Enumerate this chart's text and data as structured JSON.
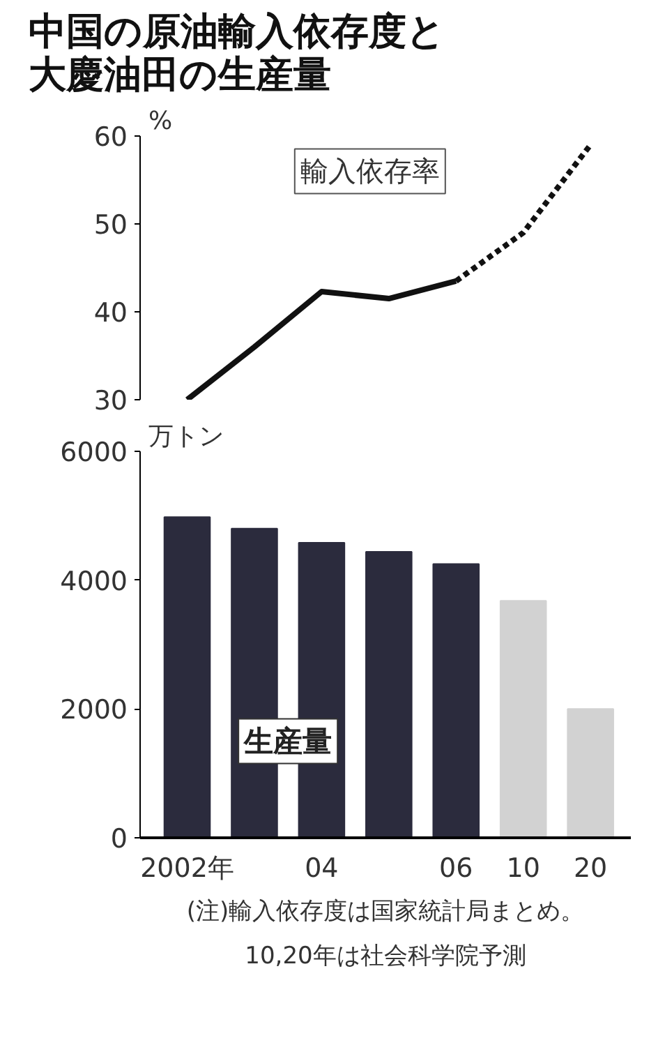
{
  "chart_data": [
    {
      "type": "line",
      "title": "中国の原油輸入依存度と大慶油田の生産量",
      "categories": [
        null,
        null,
        null,
        null,
        null,
        null,
        null
      ],
      "tick_labels": "y",
      "ylabel": "%",
      "ylim": [
        30,
        60
      ],
      "yticks": [
        30,
        40,
        50,
        60
      ],
      "grid": false,
      "series": [
        {
          "name": "輸入依存率",
          "color": "#111111",
          "line_style": "solid",
          "values": [
            30,
            36,
            42.3,
            41.5,
            43.5,
            null,
            null
          ]
        },
        {
          "color": "#111111",
          "line_style": "dashed",
          "values": [
            null,
            null,
            null,
            null,
            43.5,
            49,
            59
          ]
        }
      ]
    },
    {
      "type": "bar",
      "categories": [
        "2002年",
        null,
        "04",
        null,
        "06",
        "10",
        "20"
      ],
      "ylabel": "万トン",
      "ylim": [
        0,
        6000
      ],
      "yticks": [
        0,
        2000,
        4000,
        6000
      ],
      "grid": false,
      "series": [
        {
          "name": "生産量",
          "colors": [
            "#2b2b3d",
            "#2b2b3d",
            "#2b2b3d",
            "#2b2b3d",
            "#2b2b3d",
            "#d2d2d2",
            "#d2d2d2"
          ],
          "values": [
            4980,
            4800,
            4580,
            4440,
            4250,
            3680,
            2000
          ]
        }
      ],
      "annotations": [
        "(注)輸入依存度は国家統計局まとめ。",
        "10,20年は社会科学院予測"
      ]
    }
  ]
}
